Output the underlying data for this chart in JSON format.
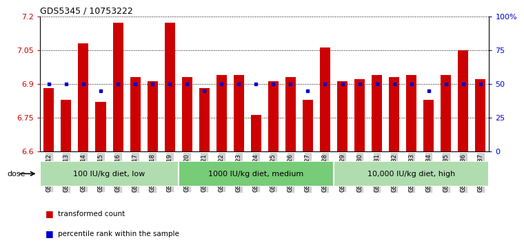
{
  "title": "GDS5345 / 10753222",
  "samples": [
    "GSM1502412",
    "GSM1502413",
    "GSM1502414",
    "GSM1502415",
    "GSM1502416",
    "GSM1502417",
    "GSM1502418",
    "GSM1502419",
    "GSM1502420",
    "GSM1502421",
    "GSM1502422",
    "GSM1502423",
    "GSM1502424",
    "GSM1502425",
    "GSM1502426",
    "GSM1502427",
    "GSM1502428",
    "GSM1502429",
    "GSM1502430",
    "GSM1502431",
    "GSM1502432",
    "GSM1502433",
    "GSM1502434",
    "GSM1502435",
    "GSM1502436",
    "GSM1502437"
  ],
  "bar_values": [
    6.88,
    6.83,
    7.08,
    6.82,
    7.17,
    6.93,
    6.91,
    7.17,
    6.93,
    6.88,
    6.94,
    6.94,
    6.76,
    6.91,
    6.93,
    6.83,
    7.06,
    6.91,
    6.92,
    6.94,
    6.93,
    6.94,
    6.83,
    6.94,
    7.05,
    6.92
  ],
  "percentile_values": [
    50,
    50,
    50,
    45,
    50,
    50,
    50,
    50,
    50,
    45,
    50,
    50,
    50,
    50,
    50,
    45,
    50,
    50,
    50,
    50,
    50,
    50,
    45,
    50,
    50,
    50
  ],
  "bar_color": "#cc0000",
  "percentile_color": "#0000cc",
  "ymin": 6.6,
  "ymax": 7.2,
  "yticks": [
    6.6,
    6.75,
    6.9,
    7.05,
    7.2
  ],
  "right_yticks": [
    0,
    25,
    50,
    75,
    100
  ],
  "right_ytick_labels": [
    "0",
    "25",
    "50",
    "75",
    "100%"
  ],
  "groups": [
    {
      "label": "100 IU/kg diet, low",
      "start": 0,
      "end": 8
    },
    {
      "label": "1000 IU/kg diet, medium",
      "start": 8,
      "end": 17
    },
    {
      "label": "10,000 IU/kg diet, high",
      "start": 17,
      "end": 26
    }
  ],
  "group_colors": [
    "#b0ddb0",
    "#77cc77",
    "#b0ddb0"
  ],
  "dose_label": "dose",
  "legend_items": [
    {
      "label": "transformed count",
      "color": "#cc0000"
    },
    {
      "label": "percentile rank within the sample",
      "color": "#0000cc"
    }
  ],
  "tick_bg_color": "#d0d0d0"
}
